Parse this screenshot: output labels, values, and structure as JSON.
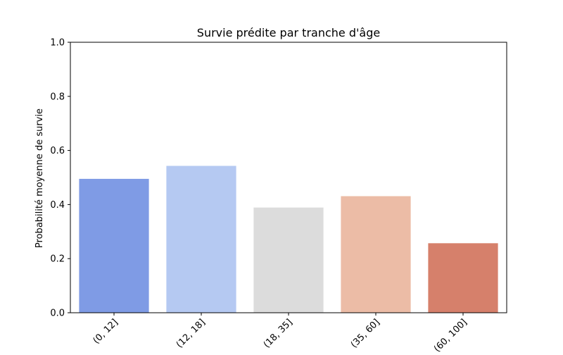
{
  "chart_data": {
    "type": "bar",
    "title": "Survie prédite par tranche d'âge",
    "xlabel": "",
    "ylabel": "Probabilité moyenne de survie",
    "categories": [
      "(0, 12]",
      "(12, 18]",
      "(18, 35]",
      "(35, 60]",
      "(60, 100]"
    ],
    "values": [
      0.495,
      0.543,
      0.389,
      0.431,
      0.257
    ],
    "colors": [
      "#7f9be5",
      "#b5c9f2",
      "#dcdcdc",
      "#ecbca6",
      "#d6806b"
    ],
    "ylim": [
      0,
      1.0
    ],
    "yticks": [
      "0.0",
      "0.2",
      "0.4",
      "0.6",
      "0.8",
      "1.0"
    ],
    "grid": false,
    "legend": "none"
  }
}
